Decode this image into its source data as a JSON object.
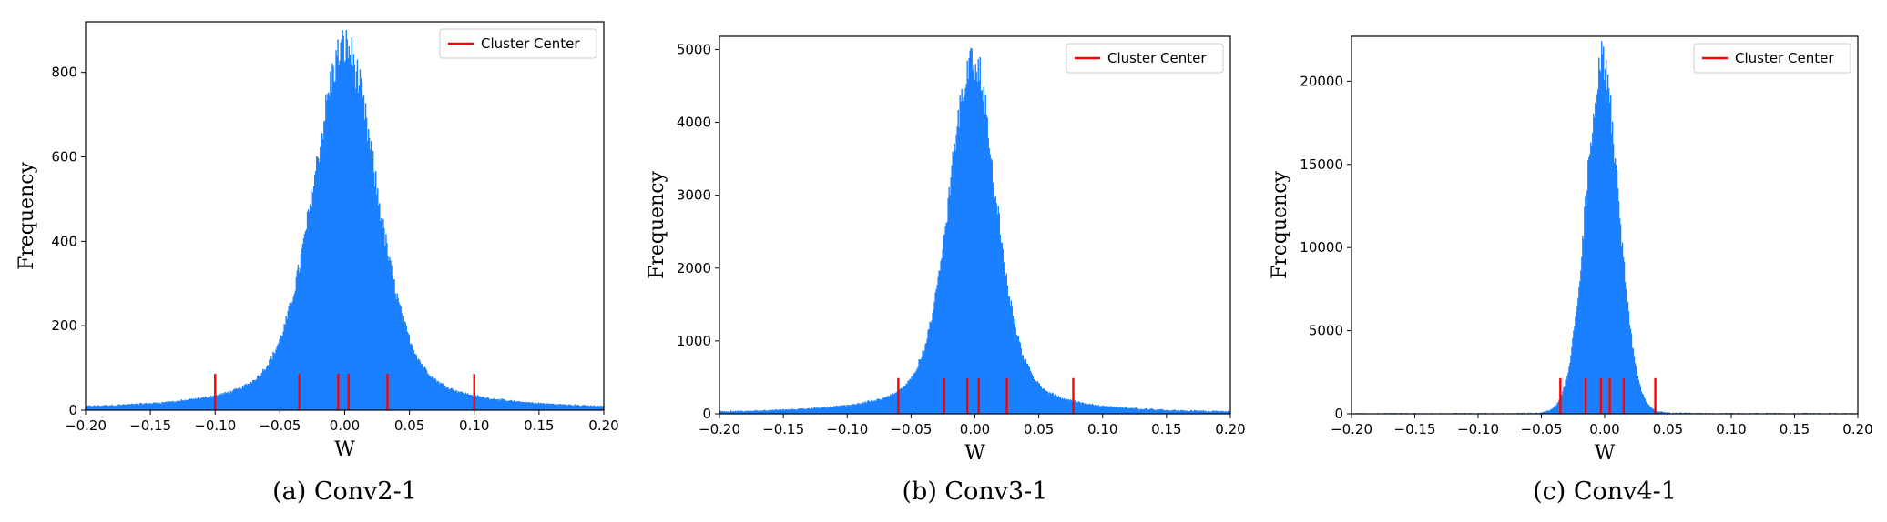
{
  "chart_data": [
    {
      "type": "histogram",
      "caption": "(a) Conv2-1",
      "xlabel": "W",
      "ylabel": "Frequency",
      "xlim": [
        -0.2,
        0.2
      ],
      "ylim": [
        0,
        920
      ],
      "xticks": [
        "−0.20",
        "−0.15",
        "−0.10",
        "−0.05",
        "0.00",
        "0.05",
        "0.10",
        "0.15",
        "0.20"
      ],
      "yticks": [
        0,
        200,
        400,
        600,
        800
      ],
      "legend": {
        "label": "Cluster Center",
        "position": "top-right"
      },
      "distribution": {
        "center": 0.0,
        "peak": 860,
        "scale": 0.023,
        "shape": "laplace-like"
      },
      "cluster_centers": [
        -0.1,
        -0.035,
        -0.005,
        0.003,
        0.033,
        0.1
      ],
      "colors": {
        "bars": "#1a80ff",
        "centers": "#ff0000"
      }
    },
    {
      "type": "histogram",
      "caption": "(b) Conv3-1",
      "xlabel": "W",
      "ylabel": "Frequency",
      "xlim": [
        -0.2,
        0.2
      ],
      "ylim": [
        0,
        5180
      ],
      "xticks": [
        "−0.20",
        "−0.15",
        "−0.10",
        "−0.05",
        "0.00",
        "0.05",
        "0.10",
        "0.15",
        "0.20"
      ],
      "yticks": [
        0,
        1000,
        2000,
        3000,
        4000,
        5000
      ],
      "legend": {
        "label": "Cluster Center",
        "position": "top-right"
      },
      "distribution": {
        "center": -0.002,
        "peak": 4900,
        "scale": 0.017,
        "shape": "laplace-like"
      },
      "cluster_centers": [
        -0.06,
        -0.024,
        -0.006,
        0.003,
        0.025,
        0.077
      ],
      "colors": {
        "bars": "#1a80ff",
        "centers": "#ff0000"
      }
    },
    {
      "type": "histogram",
      "caption": "(c) Conv4-1",
      "xlabel": "W",
      "ylabel": "Frequency",
      "xlim": [
        -0.2,
        0.2
      ],
      "ylim": [
        0,
        22700
      ],
      "xticks": [
        "−0.20",
        "−0.15",
        "−0.10",
        "−0.05",
        "0.00",
        "0.05",
        "0.10",
        "0.15",
        "0.20"
      ],
      "yticks": [
        0,
        5000,
        10000,
        15000,
        20000
      ],
      "legend": {
        "label": "Cluster Center",
        "position": "top-right"
      },
      "distribution": {
        "center": -0.002,
        "peak": 21400,
        "scale": 0.0125,
        "shape": "gaussian-like"
      },
      "cluster_centers": [
        -0.035,
        -0.015,
        -0.003,
        0.004,
        0.015,
        0.04
      ],
      "colors": {
        "bars": "#1a80ff",
        "centers": "#ff0000"
      }
    }
  ]
}
